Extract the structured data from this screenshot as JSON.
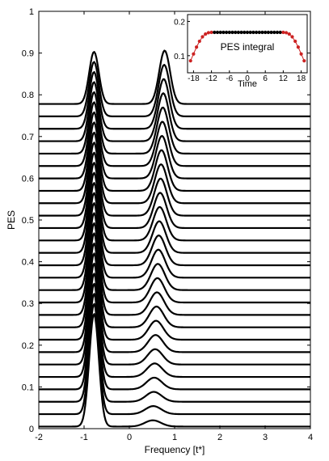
{
  "chart_data": [
    {
      "type": "line",
      "role": "main",
      "title": "",
      "xlabel": "Frequency [t*]",
      "ylabel": "PES",
      "xlim": [
        -2,
        4
      ],
      "ylim": [
        0,
        1
      ],
      "xticks": [
        "-2",
        "-1",
        "0",
        "1",
        "2",
        "3",
        "4"
      ],
      "yticks": [
        "0",
        "0.1",
        "0.2",
        "0.3",
        "0.4",
        "0.5",
        "0.6",
        "0.7",
        "0.8",
        "0.9",
        "1"
      ],
      "grid": false,
      "line_color": "#000000",
      "curve_count": 27,
      "curve_offset_step": 0.0285,
      "left_peak": {
        "center": -0.78,
        "width": 0.15,
        "amplitude_first": 0.27,
        "amplitude_last": 0.125
      },
      "right_peak": {
        "center_first": 0.52,
        "center_last": 0.78,
        "width_first": 0.25,
        "width_last": 0.17,
        "amplitude_first": 0.015,
        "amplitude_last": 0.128
      },
      "curves_baseline_first": 0.005,
      "curves_baseline_last": 0.778
    },
    {
      "type": "scatter",
      "role": "inset",
      "title": "PES integral",
      "xlabel": "Time",
      "ylabel": "",
      "xlim": [
        -20,
        20
      ],
      "ylim": [
        0.05,
        0.22
      ],
      "xticks": [
        "-18",
        "-12",
        "-6",
        "0",
        "6",
        "12",
        "18"
      ],
      "yticks": [
        "0.1",
        "0.2"
      ],
      "x": [
        -19,
        -18,
        -17,
        -16,
        -15,
        -14,
        -13,
        -12,
        -11,
        -10,
        -9,
        -8,
        -7,
        -6,
        -5,
        -4,
        -3,
        -2,
        -1,
        0,
        1,
        2,
        3,
        4,
        5,
        6,
        7,
        8,
        9,
        10,
        11,
        12,
        13,
        14,
        15,
        16,
        17,
        18,
        19
      ],
      "y": [
        0.085,
        0.105,
        0.125,
        0.142,
        0.155,
        0.163,
        0.167,
        0.168,
        0.168,
        0.168,
        0.168,
        0.168,
        0.168,
        0.168,
        0.168,
        0.168,
        0.168,
        0.168,
        0.168,
        0.168,
        0.168,
        0.168,
        0.168,
        0.168,
        0.168,
        0.168,
        0.168,
        0.168,
        0.168,
        0.168,
        0.168,
        0.168,
        0.167,
        0.163,
        0.155,
        0.142,
        0.125,
        0.105,
        0.085
      ],
      "edge_color": "#cc2222",
      "center_color": "#000000",
      "line_color": "#cc2222"
    }
  ]
}
